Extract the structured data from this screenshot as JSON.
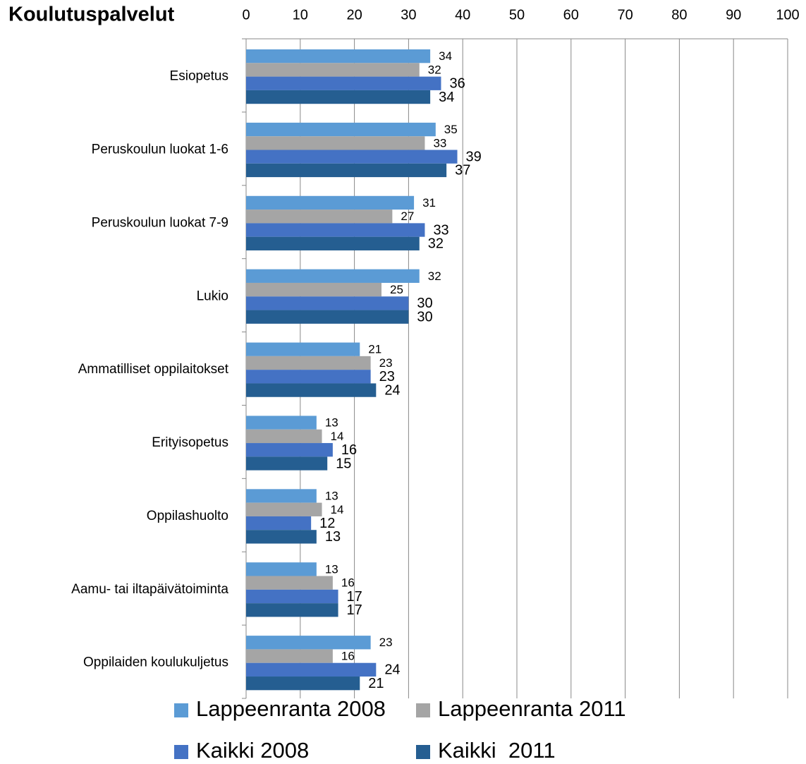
{
  "chart_data": {
    "type": "hbar",
    "title": "Koulutuspalvelut",
    "categories": [
      "Esiopetus",
      "Peruskoulun luokat 1-6",
      "Peruskoulun luokat 7-9",
      "Lukio",
      "Ammatilliset oppilaitokset",
      "Erityisopetus",
      "Oppilashuolto",
      "Aamu- tai iltapäivätoiminta",
      "Oppilaiden koulukuljetus"
    ],
    "series": [
      {
        "name": "Lappeenranta 2008",
        "color": "#5b9bd5",
        "values": [
          34,
          35,
          31,
          32,
          21,
          13,
          13,
          13,
          23
        ]
      },
      {
        "name": "Lappeenranta 2011",
        "color": "#a5a5a5",
        "values": [
          32,
          33,
          27,
          25,
          23,
          14,
          14,
          16,
          16
        ]
      },
      {
        "name": "Kaikki 2008",
        "color": "#4472c4",
        "values": [
          36,
          39,
          33,
          30,
          23,
          16,
          12,
          17,
          24
        ]
      },
      {
        "name": "Kaikki  2011",
        "color": "#255e91",
        "values": [
          34,
          37,
          32,
          30,
          24,
          15,
          13,
          17,
          21
        ]
      }
    ],
    "xlim": [
      0,
      100
    ],
    "xticks": [
      0,
      10,
      20,
      30,
      40,
      50,
      60,
      70,
      80,
      90,
      100
    ],
    "grid": true,
    "legend": "bottom"
  }
}
